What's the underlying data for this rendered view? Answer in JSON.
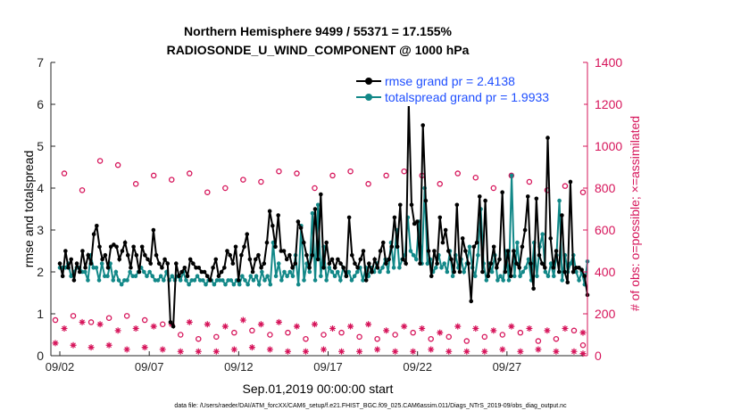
{
  "footer": {
    "file_note": "data file: /Users/raeder/DAI/ATM_forcXX/CAM6_setup/f.e21.FHIST_BGC.f09_025.CAM6assim.011/Diags_NTrS_2019-09/obs_diag_output.nc"
  },
  "colors": {
    "rmse": "#000000",
    "spread": "#128888",
    "obs": "#d6145a",
    "legend_text": "#1f4fff"
  },
  "chart_data": {
    "type": "line",
    "title": "Northern Hemisphere 9499 / 55371 = 17.155%",
    "subtitle": "RADIOSONDE_U_WIND_COMPONENT @ 1000 hPa",
    "xlabel": "Sep.01,2019 00:00:00 start",
    "ylabel_left": "rmse and totalspread",
    "ylabel_right": "# of obs: o=possible; ×=assimilated",
    "x_unit": "days since Sep.01 2019 00:00",
    "xlim": [
      0.5,
      30.5
    ],
    "ylim_left": [
      0,
      7
    ],
    "ylim_right": [
      0,
      1400
    ],
    "xticks": [
      1,
      6,
      11,
      16,
      21,
      26
    ],
    "xtick_labels": [
      "09/02",
      "09/07",
      "09/12",
      "09/17",
      "09/22",
      "09/27"
    ],
    "yticks_left": [
      0,
      1,
      2,
      3,
      4,
      5,
      6,
      7
    ],
    "ytick_labels_left": [
      "0",
      "1",
      "2",
      "3",
      "4",
      "5",
      "6",
      "7"
    ],
    "yticks_right": [
      0,
      200,
      400,
      600,
      800,
      1000,
      1200,
      1400
    ],
    "ytick_labels_right": [
      "0",
      "200",
      "400",
      "600",
      "800",
      "1000",
      "1200",
      "1400"
    ],
    "legend": {
      "position": "top-right",
      "entries": [
        "rmse grand pr = 2.4138",
        "totalspread grand pr = 1.9933"
      ]
    },
    "series": [
      {
        "name": "rmse",
        "axis": "left",
        "values": [
          2.2,
          1.9,
          2.5,
          2.1,
          2.3,
          1.8,
          2.2,
          2.0,
          2.5,
          2.1,
          2.4,
          2.2,
          2.9,
          3.1,
          2.6,
          2.3,
          2.4,
          2.1,
          2.6,
          2.65,
          2.6,
          2.3,
          2.5,
          2.7,
          2.4,
          2.1,
          2.6,
          2.4,
          2.0,
          2.6,
          2.4,
          2.3,
          2.2,
          3.0,
          2.4,
          2.2,
          2.1,
          2.3,
          2.2,
          0.8,
          0.7,
          2.2,
          1.9,
          2.0,
          2.1,
          1.9,
          2.3,
          2.2,
          2.1,
          2.1,
          2.0,
          2.0,
          1.9,
          1.8,
          2.1,
          2.3,
          1.9,
          2.0,
          2.1,
          2.5,
          2.4,
          2.2,
          2.6,
          1.8,
          2.4,
          2.6,
          2.9,
          2.3,
          2.0,
          2.3,
          2.4,
          2.1,
          2.2,
          2.7,
          3.45,
          3.1,
          2.6,
          3.35,
          2.5,
          2.5,
          2.3,
          2.4,
          2.1,
          2.2,
          3.2,
          3.05,
          2.7,
          2.4,
          2.1,
          2.4,
          3.5,
          2.3,
          3.85,
          2.1,
          2.7,
          2.2,
          2.3,
          2.1,
          2.3,
          2.2,
          2.1,
          1.9,
          3.3,
          2.4,
          2.2,
          2.1,
          2.3,
          2.5,
          1.8,
          2.2,
          2.0,
          2.3,
          2.1,
          2.5,
          2.7,
          2.2,
          2.3,
          2.6,
          3.3,
          2.6,
          3.6,
          2.3,
          2.2,
          6.05,
          3.6,
          3.15,
          3.2,
          2.2,
          5.5,
          3.7,
          2.5,
          1.9,
          2.5,
          2.2,
          3.3,
          2.7,
          3.0,
          2.5,
          2.3,
          2.0,
          3.6,
          2.0,
          2.8,
          2.5,
          2.2,
          1.3,
          2.6,
          2.7,
          3.8,
          2.0,
          3.7,
          1.9,
          2.2,
          2.6,
          2.1,
          2.3,
          3.9,
          2.0,
          2.5,
          1.9,
          2.5,
          2.2,
          2.1,
          2.6,
          3.0,
          3.8,
          2.2,
          1.6,
          3.75,
          2.4,
          2.2,
          2.1,
          5.2,
          2.8,
          2.1,
          2.5,
          2.0,
          3.35,
          2.0,
          1.75,
          4.15,
          2.0,
          2.1,
          2.1,
          2.05,
          1.9,
          1.45
        ]
      },
      {
        "name": "totalspread",
        "axis": "left",
        "values": [
          2.1,
          2.1,
          2.1,
          2.2,
          1.9,
          2.0,
          2.1,
          2.1,
          2.0,
          2.0,
          1.8,
          2.4,
          2.1,
          2.1,
          1.8,
          2.2,
          1.9,
          1.9,
          2.2,
          1.8,
          2.0,
          1.8,
          1.7,
          1.8,
          1.8,
          2.0,
          1.9,
          1.9,
          2.0,
          2.1,
          2.0,
          1.9,
          2.0,
          1.9,
          1.8,
          1.8,
          1.9,
          1.8,
          2.0,
          1.8,
          1.9,
          1.8,
          1.9,
          1.8,
          2.0,
          1.8,
          1.7,
          1.8,
          1.8,
          1.9,
          1.8,
          1.8,
          1.7,
          1.8,
          1.8,
          1.7,
          1.8,
          1.8,
          1.8,
          1.7,
          1.8,
          1.8,
          1.7,
          1.8,
          1.7,
          1.9,
          1.8,
          1.7,
          1.9,
          1.8,
          1.9,
          1.7,
          2.0,
          1.8,
          1.9,
          1.7,
          2.7,
          1.9,
          2.2,
          1.8,
          2.0,
          1.9,
          2.0,
          1.9,
          2.4,
          1.7,
          3.1,
          1.8,
          2.2,
          2.0,
          3.4,
          1.8,
          3.6,
          1.9,
          2.6,
          1.8,
          2.1,
          2.0,
          1.9,
          2.0,
          1.8,
          2.1,
          1.9,
          2.0,
          1.8,
          1.9,
          2.0,
          2.1,
          1.8,
          2.1,
          1.9,
          2.1,
          2.0,
          2.2,
          2.0,
          2.1,
          2.3,
          2.0,
          2.7,
          2.1,
          3.0,
          2.1,
          2.3,
          2.4,
          3.3,
          2.5,
          2.4,
          2.3,
          3.2,
          2.2,
          4.0,
          2.2,
          2.3,
          2.0,
          2.1,
          2.4,
          2.1,
          2.2,
          2.0,
          2.5,
          1.9,
          2.4,
          2.1,
          2.3,
          2.0,
          2.2,
          2.6,
          2.1,
          1.9,
          2.4,
          3.5,
          2.2,
          1.8,
          2.2,
          2.0,
          2.4,
          1.8,
          1.9,
          1.8,
          2.5,
          1.8,
          4.3,
          1.9,
          2.7,
          1.9,
          2.0,
          2.1,
          2.3,
          1.8,
          2.7,
          1.9,
          2.6,
          2.9,
          2.0,
          1.9,
          2.2,
          1.9,
          2.4,
          3.7,
          1.8,
          2.4,
          2.0,
          2.2,
          2.4,
          2.0,
          1.8,
          2.0,
          1.7,
          2.25
        ]
      },
      {
        "name": "obs possible (00Z)",
        "axis": "right",
        "marker": "circle",
        "x": [
          0.25,
          1.25,
          2.25,
          3.25,
          4.25,
          5.25,
          6.25,
          7.25,
          8.25,
          9.25,
          10.25,
          11.25,
          12.25,
          13.25,
          14.25,
          15.25,
          16.25,
          17.25,
          18.25,
          19.25,
          20.25,
          21.25,
          22.25,
          23.25,
          24.25,
          25.25,
          26.25,
          27.25,
          28.25,
          29.25,
          30.25
        ],
        "values": [
          950,
          870,
          790,
          930,
          910,
          820,
          860,
          840,
          870,
          780,
          800,
          840,
          830,
          880,
          870,
          800,
          860,
          880,
          820,
          860,
          880,
          860,
          820,
          870,
          850,
          800,
          860,
          830,
          790,
          810,
          780
        ]
      },
      {
        "name": "obs possible (12Z)",
        "axis": "right",
        "marker": "circle",
        "x": [
          0.75,
          1.75,
          2.75,
          3.75,
          4.75,
          5.75,
          6.75,
          7.75,
          8.75,
          9.75,
          10.75,
          11.75,
          12.75,
          13.75,
          14.75,
          15.75,
          16.75,
          17.75,
          18.75,
          19.75,
          20.75,
          21.75,
          22.75,
          23.75,
          24.75,
          25.75,
          26.75,
          27.75,
          28.75,
          29.75,
          30.25
        ],
        "values": [
          170,
          190,
          160,
          180,
          190,
          170,
          150,
          100,
          80,
          90,
          110,
          120,
          100,
          110,
          80,
          100,
          110,
          90,
          80,
          100,
          110,
          80,
          90,
          70,
          90,
          100,
          110,
          70,
          80,
          120,
          50
        ]
      },
      {
        "name": "obs assimilated (00Z)",
        "axis": "right",
        "marker": "asterisk",
        "x": [
          0.25,
          1.25,
          2.25,
          3.25,
          4.25,
          5.25,
          6.25,
          7.25,
          8.25,
          9.25,
          10.25,
          11.25,
          12.25,
          13.25,
          14.25,
          15.25,
          16.25,
          17.25,
          18.25,
          19.25,
          20.25,
          21.25,
          22.25,
          23.25,
          24.25,
          25.25,
          26.25,
          27.25,
          28.25,
          29.25,
          30.25
        ],
        "values": [
          180,
          130,
          160,
          150,
          120,
          130,
          140,
          150,
          160,
          150,
          140,
          170,
          150,
          160,
          140,
          150,
          130,
          140,
          150,
          120,
          140,
          130,
          110,
          140,
          130,
          120,
          140,
          130,
          120,
          130,
          110
        ]
      },
      {
        "name": "obs assimilated (12Z)",
        "axis": "right",
        "marker": "asterisk",
        "x": [
          0.75,
          1.75,
          2.75,
          3.75,
          4.75,
          5.75,
          6.75,
          7.75,
          8.75,
          9.75,
          10.75,
          11.75,
          12.75,
          13.75,
          14.75,
          15.75,
          16.75,
          17.75,
          18.75,
          19.75,
          20.75,
          21.75,
          22.75,
          23.75,
          24.75,
          25.75,
          26.75,
          27.75,
          28.75,
          29.75,
          30.25
        ],
        "values": [
          60,
          50,
          40,
          50,
          30,
          40,
          30,
          20,
          20,
          20,
          30,
          40,
          30,
          20,
          20,
          30,
          20,
          20,
          30,
          20,
          20,
          30,
          20,
          20,
          20,
          30,
          20,
          30,
          20,
          20,
          10
        ]
      }
    ]
  }
}
